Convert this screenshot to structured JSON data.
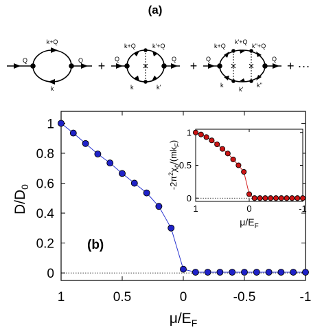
{
  "panel_a": {
    "label": "(a)",
    "plus": "+",
    "ellipsis": "+ ···",
    "diagram1": {
      "in": "Q",
      "out": "Q",
      "top": "k+Q",
      "bottom": "k"
    },
    "diagram2": {
      "in": "Q",
      "out": "Q",
      "top_left": "k+Q",
      "top_right": "k'+Q",
      "bottom_left": "k",
      "bottom_right": "k'",
      "cross": "×"
    },
    "diagram3": {
      "in": "Q",
      "out": "Q",
      "top_left": "k+Q",
      "top_mid": "k'+Q",
      "top_right": "k''+Q",
      "bottom_left": "k",
      "bottom_mid": "k'",
      "bottom_right": "k''",
      "cross": "×"
    }
  },
  "panel_b": {
    "label": "(b)"
  },
  "chart_data": [
    {
      "type": "scatter",
      "xlabel": "μ/E",
      "xlabel_sub": "F",
      "ylabel": "D/D",
      "ylabel_sub": "0",
      "xlim": [
        1,
        -1
      ],
      "ylim": [
        -0.05,
        1.08
      ],
      "xticks": [
        1,
        0.5,
        0,
        -0.5,
        -1
      ],
      "xtick_labels": [
        "1",
        "0.5",
        "0",
        "-0.5",
        "-1"
      ],
      "yticks": [
        0,
        0.2,
        0.4,
        0.6,
        0.8,
        1
      ],
      "ytick_labels": [
        "0",
        "0.2",
        "0.4",
        "0.6",
        "0.8",
        "1"
      ],
      "zero_line": "dotted",
      "marker_color": "#1f22c8",
      "line_color": "#2a35d0",
      "x": [
        1.0,
        0.9,
        0.8,
        0.7,
        0.6,
        0.5,
        0.4,
        0.3,
        0.2,
        0.1,
        0.0,
        -0.1,
        -0.2,
        -0.3,
        -0.4,
        -0.5,
        -0.6,
        -0.7,
        -0.8,
        -0.9,
        -1.0
      ],
      "y": [
        1.0,
        0.935,
        0.865,
        0.795,
        0.735,
        0.665,
        0.6,
        0.535,
        0.445,
        0.3,
        0.025,
        0.005,
        0.005,
        0.005,
        0.005,
        0.005,
        0.005,
        0.005,
        0.005,
        0.005,
        0.005
      ]
    },
    {
      "type": "scatter",
      "inset": true,
      "xlabel": "μ/E",
      "xlabel_sub": "F",
      "ylabel": "-2π²χ₀/(mkₖ)",
      "ylabel_parts": {
        "a": "-2π",
        "a_sup": "2",
        "b": "χ",
        "b_sub": "0",
        "c": "/(mk",
        "c_sub": "F",
        "d": ")"
      },
      "xlim": [
        1,
        -1
      ],
      "ylim": [
        -0.05,
        1.05
      ],
      "xticks": [
        1,
        0,
        -1
      ],
      "xtick_labels": [
        "1",
        "0",
        "-1"
      ],
      "yticks": [
        0,
        0.5,
        1
      ],
      "ytick_labels": [
        "0",
        "0.5",
        "1"
      ],
      "zero_line": "dotted",
      "marker_color": "#cc1414",
      "line_color": "#d42020",
      "x": [
        1.0,
        0.9,
        0.8,
        0.7,
        0.6,
        0.5,
        0.4,
        0.3,
        0.2,
        0.1,
        0.0,
        -0.1,
        -0.2,
        -0.3,
        -0.4,
        -0.5,
        -0.6,
        -0.7,
        -0.8,
        -0.9,
        -1.0
      ],
      "y": [
        1.0,
        0.97,
        0.93,
        0.88,
        0.82,
        0.75,
        0.68,
        0.59,
        0.5,
        0.4,
        0.06,
        0.0,
        0.0,
        0.0,
        0.0,
        0.0,
        0.0,
        0.0,
        0.0,
        0.0,
        0.0
      ]
    }
  ]
}
